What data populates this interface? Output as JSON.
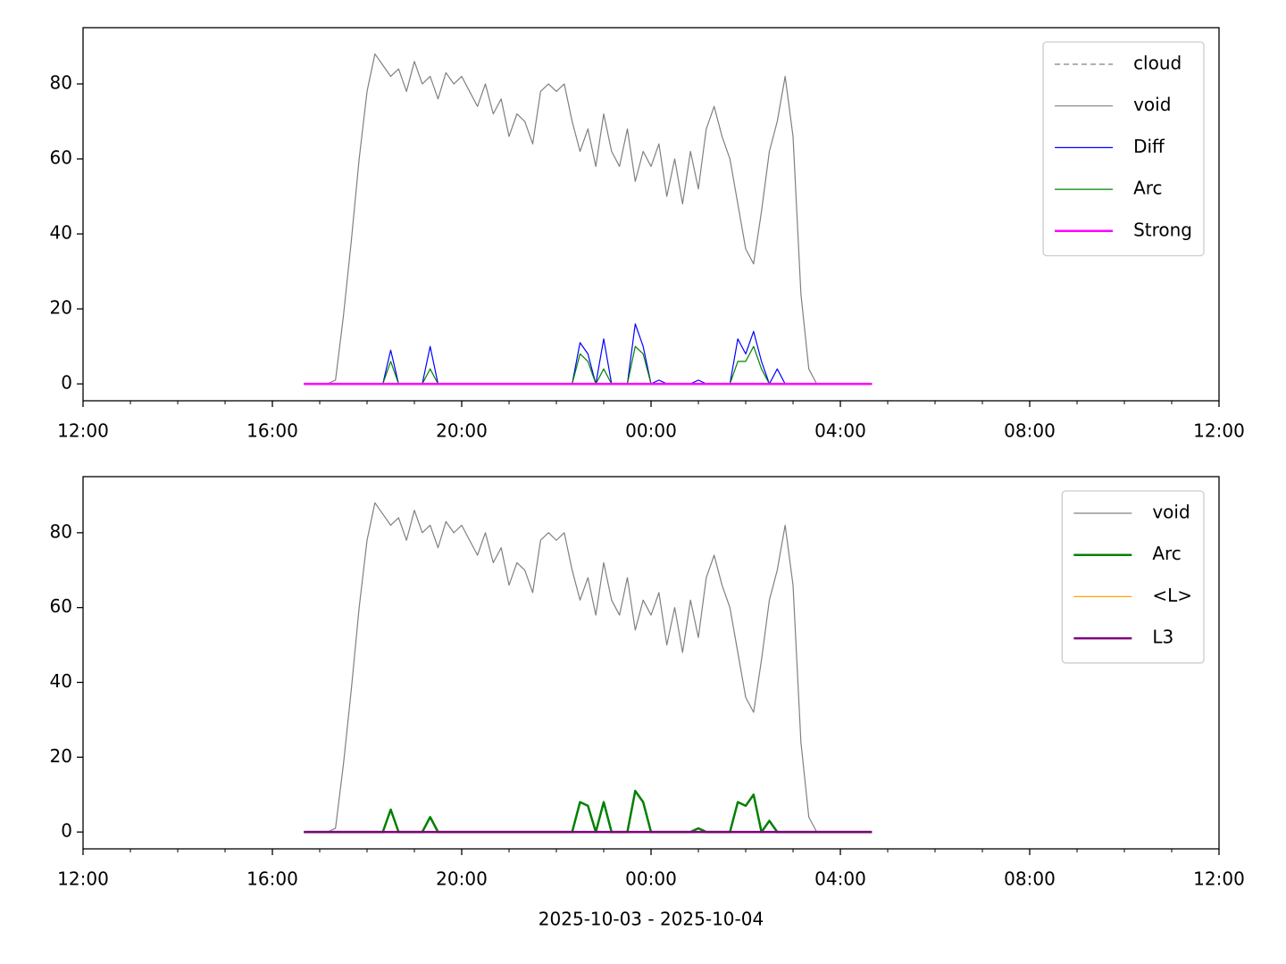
{
  "chart_data": [
    {
      "type": "line",
      "x": [
        "2025-10-03 16:40",
        "2025-10-03 16:50",
        "2025-10-03 17:00",
        "2025-10-03 17:10",
        "2025-10-03 17:20",
        "2025-10-03 17:30",
        "2025-10-03 17:40",
        "2025-10-03 17:50",
        "2025-10-03 18:00",
        "2025-10-03 18:10",
        "2025-10-03 18:20",
        "2025-10-03 18:30",
        "2025-10-03 18:40",
        "2025-10-03 18:50",
        "2025-10-03 19:00",
        "2025-10-03 19:10",
        "2025-10-03 19:20",
        "2025-10-03 19:30",
        "2025-10-03 19:40",
        "2025-10-03 19:50",
        "2025-10-03 20:00",
        "2025-10-03 20:10",
        "2025-10-03 20:20",
        "2025-10-03 20:30",
        "2025-10-03 20:40",
        "2025-10-03 20:50",
        "2025-10-03 21:00",
        "2025-10-03 21:10",
        "2025-10-03 21:20",
        "2025-10-03 21:30",
        "2025-10-03 21:40",
        "2025-10-03 21:50",
        "2025-10-03 22:00",
        "2025-10-03 22:10",
        "2025-10-03 22:20",
        "2025-10-03 22:30",
        "2025-10-03 22:40",
        "2025-10-03 22:50",
        "2025-10-03 23:00",
        "2025-10-03 23:10",
        "2025-10-03 23:20",
        "2025-10-03 23:30",
        "2025-10-03 23:40",
        "2025-10-03 23:50",
        "2025-10-04 00:00",
        "2025-10-04 00:10",
        "2025-10-04 00:20",
        "2025-10-04 00:30",
        "2025-10-04 00:40",
        "2025-10-04 00:50",
        "2025-10-04 01:00",
        "2025-10-04 01:10",
        "2025-10-04 01:20",
        "2025-10-04 01:30",
        "2025-10-04 01:40",
        "2025-10-04 01:50",
        "2025-10-04 02:00",
        "2025-10-04 02:10",
        "2025-10-04 02:20",
        "2025-10-04 02:30",
        "2025-10-04 02:40",
        "2025-10-04 02:50",
        "2025-10-04 03:00",
        "2025-10-04 03:10",
        "2025-10-04 03:20",
        "2025-10-04 03:30",
        "2025-10-04 03:40",
        "2025-10-04 03:50",
        "2025-10-04 04:00",
        "2025-10-04 04:10",
        "2025-10-04 04:20",
        "2025-10-04 04:30",
        "2025-10-04 04:40"
      ],
      "series": [
        {
          "name": "cloud",
          "color": "#808080",
          "dashed": true,
          "width": 1.2,
          "values": [
            null,
            null,
            null,
            null,
            null,
            null,
            null,
            null,
            null,
            null,
            null,
            null,
            null,
            null,
            null,
            null,
            null,
            null,
            null,
            null,
            null,
            null,
            null,
            null,
            null,
            null,
            null,
            null,
            null,
            null,
            null,
            null,
            null,
            null,
            null,
            null,
            null,
            null,
            null,
            null,
            null,
            null,
            null,
            null,
            null,
            null,
            null,
            null,
            null,
            null,
            null,
            null,
            null,
            null,
            null,
            null,
            null,
            null,
            null,
            null,
            null,
            null,
            null,
            null,
            null,
            null,
            null,
            null,
            null,
            null,
            null,
            null,
            null
          ]
        },
        {
          "name": "void",
          "color": "#808080",
          "width": 1.2,
          "values": [
            0,
            0,
            0,
            0,
            1,
            18,
            38,
            60,
            78,
            88,
            85,
            82,
            84,
            78,
            86,
            80,
            82,
            76,
            83,
            80,
            82,
            78,
            74,
            80,
            72,
            76,
            66,
            72,
            70,
            64,
            78,
            80,
            78,
            80,
            70,
            62,
            68,
            58,
            72,
            62,
            58,
            68,
            54,
            62,
            58,
            64,
            50,
            60,
            48,
            62,
            52,
            68,
            74,
            66,
            60,
            48,
            36,
            32,
            46,
            62,
            70,
            82,
            66,
            24,
            4,
            0,
            0,
            0,
            0,
            0,
            0,
            0,
            0
          ]
        },
        {
          "name": "Diff",
          "color": "#0000ff",
          "width": 1.2,
          "values": [
            0,
            0,
            0,
            0,
            0,
            0,
            0,
            0,
            0,
            0,
            0,
            9,
            0,
            0,
            0,
            0,
            10,
            0,
            0,
            0,
            0,
            0,
            0,
            0,
            0,
            0,
            0,
            0,
            0,
            0,
            0,
            0,
            0,
            0,
            0,
            11,
            8,
            0,
            12,
            0,
            0,
            0,
            16,
            10,
            0,
            1,
            0,
            0,
            0,
            0,
            1,
            0,
            0,
            0,
            0,
            12,
            8,
            14,
            6,
            0,
            4,
            0,
            0,
            0,
            0,
            0,
            0,
            0,
            0,
            0,
            0,
            0,
            0
          ]
        },
        {
          "name": "Arc",
          "color": "#008000",
          "width": 1.2,
          "values": [
            0,
            0,
            0,
            0,
            0,
            0,
            0,
            0,
            0,
            0,
            0,
            6,
            0,
            0,
            0,
            0,
            4,
            0,
            0,
            0,
            0,
            0,
            0,
            0,
            0,
            0,
            0,
            0,
            0,
            0,
            0,
            0,
            0,
            0,
            0,
            8,
            6,
            0,
            4,
            0,
            0,
            0,
            10,
            8,
            0,
            0,
            0,
            0,
            0,
            0,
            0,
            0,
            0,
            0,
            0,
            6,
            6,
            10,
            4,
            0,
            0,
            0,
            0,
            0,
            0,
            0,
            0,
            0,
            0,
            0,
            0,
            0,
            0
          ]
        },
        {
          "name": "Strong",
          "color": "#ff00ff",
          "width": 2.5,
          "values": [
            0,
            0,
            0,
            0,
            0,
            0,
            0,
            0,
            0,
            0,
            0,
            0,
            0,
            0,
            0,
            0,
            0,
            0,
            0,
            0,
            0,
            0,
            0,
            0,
            0,
            0,
            0,
            0,
            0,
            0,
            0,
            0,
            0,
            0,
            0,
            0,
            0,
            0,
            0,
            0,
            0,
            0,
            0,
            0,
            0,
            0,
            0,
            0,
            0,
            0,
            0,
            0,
            0,
            0,
            0,
            0,
            0,
            0,
            0,
            0,
            0,
            0,
            0,
            0,
            0,
            0,
            0,
            0,
            0,
            0,
            0,
            0,
            0
          ]
        }
      ],
      "xlim": [
        "2025-10-03 12:00",
        "2025-10-04 12:00"
      ],
      "xticks": [
        {
          "value": "2025-10-03 12:00",
          "label": "12:00"
        },
        {
          "value": "2025-10-03 16:00",
          "label": "16:00"
        },
        {
          "value": "2025-10-03 20:00",
          "label": "20:00"
        },
        {
          "value": "2025-10-04 00:00",
          "label": "00:00"
        },
        {
          "value": "2025-10-04 04:00",
          "label": "04:00"
        },
        {
          "value": "2025-10-04 08:00",
          "label": "08:00"
        },
        {
          "value": "2025-10-04 12:00",
          "label": "12:00"
        }
      ],
      "xminorticks": [
        "2025-10-03 13:00",
        "2025-10-03 14:00",
        "2025-10-03 15:00",
        "2025-10-03 17:00",
        "2025-10-03 18:00",
        "2025-10-03 19:00",
        "2025-10-03 21:00",
        "2025-10-03 22:00",
        "2025-10-03 23:00",
        "2025-10-04 01:00",
        "2025-10-04 02:00",
        "2025-10-04 03:00",
        "2025-10-04 05:00",
        "2025-10-04 06:00",
        "2025-10-04 07:00",
        "2025-10-04 09:00",
        "2025-10-04 10:00",
        "2025-10-04 11:00"
      ],
      "ylim": [
        -4.5,
        95
      ],
      "yticks": [
        0,
        20,
        40,
        60,
        80
      ],
      "legend": "upper right"
    },
    {
      "type": "line",
      "x": [
        "2025-10-03 16:40",
        "2025-10-03 16:50",
        "2025-10-03 17:00",
        "2025-10-03 17:10",
        "2025-10-03 17:20",
        "2025-10-03 17:30",
        "2025-10-03 17:40",
        "2025-10-03 17:50",
        "2025-10-03 18:00",
        "2025-10-03 18:10",
        "2025-10-03 18:20",
        "2025-10-03 18:30",
        "2025-10-03 18:40",
        "2025-10-03 18:50",
        "2025-10-03 19:00",
        "2025-10-03 19:10",
        "2025-10-03 19:20",
        "2025-10-03 19:30",
        "2025-10-03 19:40",
        "2025-10-03 19:50",
        "2025-10-03 20:00",
        "2025-10-03 20:10",
        "2025-10-03 20:20",
        "2025-10-03 20:30",
        "2025-10-03 20:40",
        "2025-10-03 20:50",
        "2025-10-03 21:00",
        "2025-10-03 21:10",
        "2025-10-03 21:20",
        "2025-10-03 21:30",
        "2025-10-03 21:40",
        "2025-10-03 21:50",
        "2025-10-03 22:00",
        "2025-10-03 22:10",
        "2025-10-03 22:20",
        "2025-10-03 22:30",
        "2025-10-03 22:40",
        "2025-10-03 22:50",
        "2025-10-03 23:00",
        "2025-10-03 23:10",
        "2025-10-03 23:20",
        "2025-10-03 23:30",
        "2025-10-03 23:40",
        "2025-10-03 23:50",
        "2025-10-04 00:00",
        "2025-10-04 00:10",
        "2025-10-04 00:20",
        "2025-10-04 00:30",
        "2025-10-04 00:40",
        "2025-10-04 00:50",
        "2025-10-04 01:00",
        "2025-10-04 01:10",
        "2025-10-04 01:20",
        "2025-10-04 01:30",
        "2025-10-04 01:40",
        "2025-10-04 01:50",
        "2025-10-04 02:00",
        "2025-10-04 02:10",
        "2025-10-04 02:20",
        "2025-10-04 02:30",
        "2025-10-04 02:40",
        "2025-10-04 02:50",
        "2025-10-04 03:00",
        "2025-10-04 03:10",
        "2025-10-04 03:20",
        "2025-10-04 03:30",
        "2025-10-04 03:40",
        "2025-10-04 03:50",
        "2025-10-04 04:00",
        "2025-10-04 04:10",
        "2025-10-04 04:20",
        "2025-10-04 04:30",
        "2025-10-04 04:40"
      ],
      "series": [
        {
          "name": "void",
          "color": "#808080",
          "width": 1.2,
          "values": [
            0,
            0,
            0,
            0,
            1,
            18,
            38,
            60,
            78,
            88,
            85,
            82,
            84,
            78,
            86,
            80,
            82,
            76,
            83,
            80,
            82,
            78,
            74,
            80,
            72,
            76,
            66,
            72,
            70,
            64,
            78,
            80,
            78,
            80,
            70,
            62,
            68,
            58,
            72,
            62,
            58,
            68,
            54,
            62,
            58,
            64,
            50,
            60,
            48,
            62,
            52,
            68,
            74,
            66,
            60,
            48,
            36,
            32,
            46,
            62,
            70,
            82,
            66,
            24,
            4,
            0,
            0,
            0,
            0,
            0,
            0,
            0,
            0
          ]
        },
        {
          "name": "Arc",
          "color": "#008000",
          "width": 2.5,
          "values": [
            0,
            0,
            0,
            0,
            0,
            0,
            0,
            0,
            0,
            0,
            0,
            6,
            0,
            0,
            0,
            0,
            4,
            0,
            0,
            0,
            0,
            0,
            0,
            0,
            0,
            0,
            0,
            0,
            0,
            0,
            0,
            0,
            0,
            0,
            0,
            8,
            7,
            0,
            8,
            0,
            0,
            0,
            11,
            8,
            0,
            0,
            0,
            0,
            0,
            0,
            1,
            0,
            0,
            0,
            0,
            8,
            7,
            10,
            0,
            3,
            0,
            0,
            0,
            0,
            0,
            0,
            0,
            0,
            0,
            0,
            0,
            0,
            0
          ]
        },
        {
          "name": "<L>",
          "color": "#ffa500",
          "width": 1.2,
          "values": [
            0,
            0,
            0,
            0,
            0,
            0,
            0,
            0,
            0,
            0,
            0,
            0,
            0,
            0,
            0,
            0,
            0,
            0,
            0,
            0,
            0,
            0,
            0,
            0,
            0,
            0,
            0,
            0,
            0,
            0,
            0,
            0,
            0,
            0,
            0,
            0,
            0,
            0,
            0,
            0,
            0,
            0,
            0,
            0,
            0,
            0,
            0,
            0,
            0,
            0,
            0,
            0,
            0,
            0,
            0,
            0,
            0,
            0,
            0,
            0,
            0,
            0,
            0,
            0,
            0,
            0,
            0,
            0,
            0,
            0,
            0,
            0,
            0
          ]
        },
        {
          "name": "L3",
          "color": "#800080",
          "width": 2.5,
          "values": [
            0,
            0,
            0,
            0,
            0,
            0,
            0,
            0,
            0,
            0,
            0,
            0,
            0,
            0,
            0,
            0,
            0,
            0,
            0,
            0,
            0,
            0,
            0,
            0,
            0,
            0,
            0,
            0,
            0,
            0,
            0,
            0,
            0,
            0,
            0,
            0,
            0,
            0,
            0,
            0,
            0,
            0,
            0,
            0,
            0,
            0,
            0,
            0,
            0,
            0,
            0,
            0,
            0,
            0,
            0,
            0,
            0,
            0,
            0,
            0,
            0,
            0,
            0,
            0,
            0,
            0,
            0,
            0,
            0,
            0,
            0,
            0,
            0
          ]
        }
      ],
      "xlim": [
        "2025-10-03 12:00",
        "2025-10-04 12:00"
      ],
      "xticks": [
        {
          "value": "2025-10-03 12:00",
          "label": "12:00"
        },
        {
          "value": "2025-10-03 16:00",
          "label": "16:00"
        },
        {
          "value": "2025-10-03 20:00",
          "label": "20:00"
        },
        {
          "value": "2025-10-04 00:00",
          "label": "00:00"
        },
        {
          "value": "2025-10-04 04:00",
          "label": "04:00"
        },
        {
          "value": "2025-10-04 08:00",
          "label": "08:00"
        },
        {
          "value": "2025-10-04 12:00",
          "label": "12:00"
        }
      ],
      "xminorticks": [
        "2025-10-03 13:00",
        "2025-10-03 14:00",
        "2025-10-03 15:00",
        "2025-10-03 17:00",
        "2025-10-03 18:00",
        "2025-10-03 19:00",
        "2025-10-03 21:00",
        "2025-10-03 22:00",
        "2025-10-03 23:00",
        "2025-10-04 01:00",
        "2025-10-04 02:00",
        "2025-10-04 03:00",
        "2025-10-04 05:00",
        "2025-10-04 06:00",
        "2025-10-04 07:00",
        "2025-10-04 09:00",
        "2025-10-04 10:00",
        "2025-10-04 11:00"
      ],
      "ylim": [
        -4.5,
        95
      ],
      "yticks": [
        0,
        20,
        40,
        60,
        80
      ],
      "legend": "upper right",
      "xlabel": "2025-10-03 - 2025-10-04"
    }
  ]
}
